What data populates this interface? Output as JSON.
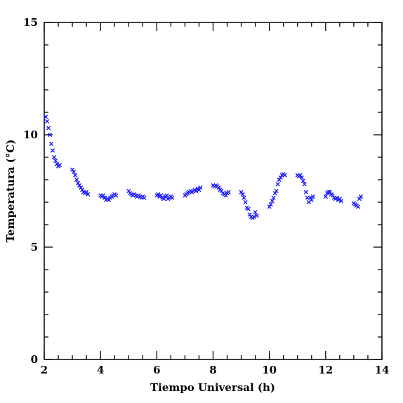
{
  "chart_data": {
    "type": "scatter",
    "title": "",
    "xlabel": "Tiempo Universal (h)",
    "ylabel": "Temperatura (°C)",
    "xlim": [
      2,
      14
    ],
    "ylim": [
      0,
      15
    ],
    "x_ticks": [
      2,
      4,
      6,
      8,
      10,
      12,
      14
    ],
    "y_ticks": [
      0,
      5,
      10,
      15
    ],
    "x_tick_labels": [
      "2",
      "4",
      "6",
      "8",
      "10",
      "12",
      "14"
    ],
    "y_tick_labels": [
      "0",
      "5",
      "10",
      "15"
    ],
    "grid": false,
    "marker": "x",
    "marker_color": "#1a1aff",
    "series": [
      {
        "x": [
          2.05,
          2.1,
          2.15,
          2.2,
          2.25,
          2.3,
          2.35,
          2.4,
          2.45,
          2.5,
          2.55,
          3.0,
          3.05,
          3.1,
          3.15,
          3.2,
          3.25,
          3.3,
          3.35,
          3.4,
          3.45,
          3.5,
          3.55,
          4.0,
          4.05,
          4.1,
          4.15,
          4.2,
          4.25,
          4.3,
          4.35,
          4.4,
          4.45,
          4.5,
          4.55,
          5.0,
          5.05,
          5.1,
          5.15,
          5.2,
          5.25,
          5.3,
          5.35,
          5.4,
          5.45,
          5.5,
          5.55,
          6.0,
          6.05,
          6.1,
          6.15,
          6.2,
          6.25,
          6.3,
          6.35,
          6.4,
          6.45,
          6.5,
          6.55,
          7.0,
          7.05,
          7.1,
          7.15,
          7.2,
          7.25,
          7.3,
          7.35,
          7.4,
          7.45,
          7.5,
          7.55,
          8.0,
          8.05,
          8.1,
          8.15,
          8.2,
          8.25,
          8.3,
          8.35,
          8.4,
          8.45,
          8.5,
          8.55,
          9.0,
          9.05,
          9.1,
          9.15,
          9.2,
          9.25,
          9.3,
          9.35,
          9.4,
          9.45,
          9.5,
          9.55,
          10.0,
          10.05,
          10.1,
          10.15,
          10.2,
          10.25,
          10.3,
          10.35,
          10.4,
          10.45,
          10.5,
          10.55,
          11.0,
          11.05,
          11.1,
          11.15,
          11.2,
          11.25,
          11.3,
          11.35,
          11.4,
          11.45,
          11.5,
          11.55,
          12.0,
          12.05,
          12.1,
          12.15,
          12.2,
          12.25,
          12.3,
          12.35,
          12.4,
          12.45,
          12.5,
          12.55,
          13.0,
          13.05,
          13.1,
          13.15,
          13.2,
          13.25
        ],
        "y": [
          10.8,
          10.6,
          10.3,
          10.0,
          9.6,
          9.3,
          9.0,
          8.85,
          8.7,
          8.6,
          8.65,
          8.45,
          8.35,
          8.2,
          8.0,
          7.85,
          7.75,
          7.65,
          7.55,
          7.45,
          7.4,
          7.45,
          7.35,
          7.3,
          7.25,
          7.3,
          7.2,
          7.1,
          7.15,
          7.1,
          7.2,
          7.25,
          7.3,
          7.35,
          7.3,
          7.5,
          7.4,
          7.35,
          7.3,
          7.35,
          7.3,
          7.25,
          7.3,
          7.25,
          7.2,
          7.25,
          7.2,
          7.3,
          7.35,
          7.25,
          7.3,
          7.2,
          7.15,
          7.25,
          7.3,
          7.15,
          7.2,
          7.25,
          7.2,
          7.3,
          7.35,
          7.4,
          7.45,
          7.5,
          7.45,
          7.5,
          7.55,
          7.5,
          7.6,
          7.55,
          7.65,
          7.75,
          7.7,
          7.75,
          7.7,
          7.65,
          7.55,
          7.5,
          7.4,
          7.35,
          7.3,
          7.4,
          7.45,
          7.45,
          7.35,
          7.2,
          7.0,
          6.75,
          6.7,
          6.45,
          6.35,
          6.3,
          6.35,
          6.55,
          6.4,
          6.8,
          6.9,
          7.05,
          7.2,
          7.4,
          7.5,
          7.8,
          8.0,
          8.1,
          8.2,
          8.25,
          8.2,
          8.2,
          8.15,
          8.2,
          8.1,
          7.95,
          7.8,
          7.45,
          7.2,
          7.0,
          7.2,
          7.1,
          7.25,
          7.25,
          7.4,
          7.45,
          7.45,
          7.35,
          7.3,
          7.2,
          7.15,
          7.2,
          7.1,
          7.15,
          7.05,
          6.95,
          6.9,
          6.85,
          6.8,
          7.15,
          7.25
        ]
      }
    ]
  }
}
